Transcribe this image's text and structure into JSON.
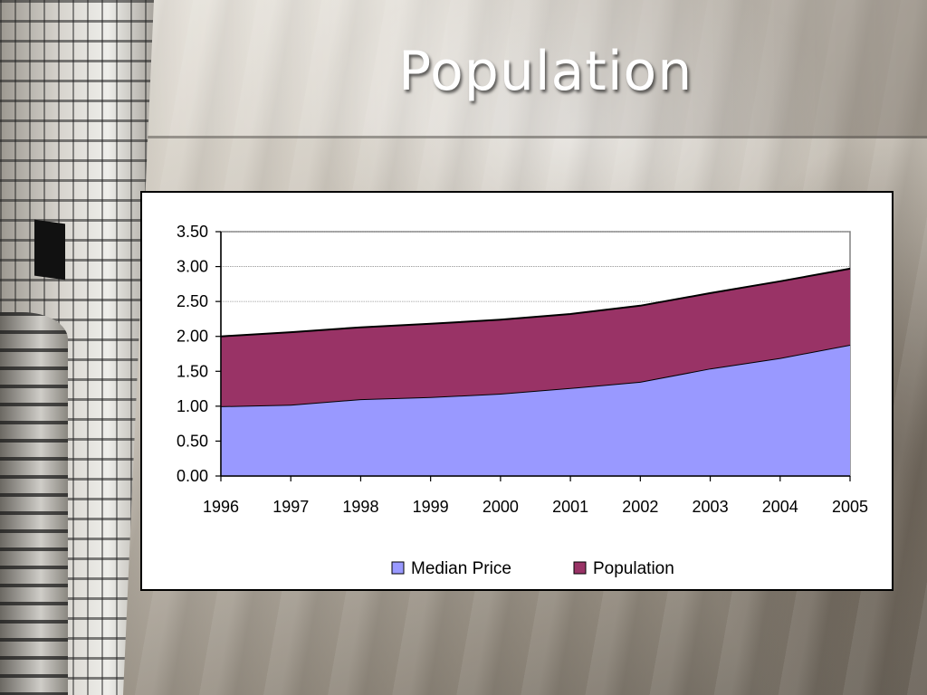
{
  "slide": {
    "title": "Population"
  },
  "chart_data": {
    "type": "area",
    "stacked": true,
    "categories": [
      "1996",
      "1997",
      "1998",
      "1999",
      "2000",
      "2001",
      "2002",
      "2003",
      "2004",
      "2005"
    ],
    "series": [
      {
        "name": "Median Price",
        "color": "#9999ff",
        "values": [
          1.0,
          1.02,
          1.1,
          1.13,
          1.18,
          1.26,
          1.35,
          1.54,
          1.69,
          1.88
        ]
      },
      {
        "name": "Population",
        "color": "#993366",
        "values": [
          1.0,
          1.04,
          1.03,
          1.05,
          1.06,
          1.06,
          1.09,
          1.08,
          1.1,
          1.09
        ]
      }
    ],
    "yticks": [
      "0.00",
      "0.50",
      "1.00",
      "1.50",
      "2.00",
      "2.50",
      "3.00",
      "3.50"
    ],
    "ylim": [
      0,
      3.5
    ],
    "grid": true,
    "legend_position": "bottom"
  }
}
